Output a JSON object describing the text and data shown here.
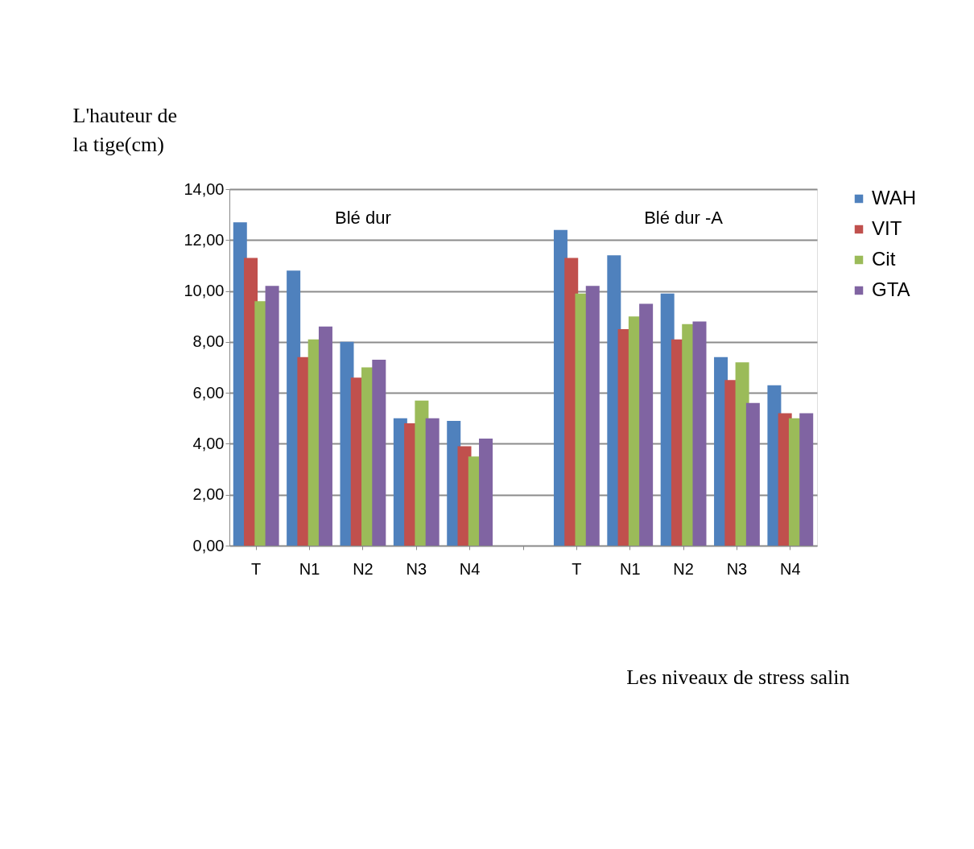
{
  "chart_data": {
    "type": "bar",
    "categories": [
      "T",
      "N1",
      "N2",
      "N3",
      "N4",
      null,
      "T",
      "N1",
      "N2",
      "N3",
      "N4"
    ],
    "series": [
      {
        "name": "WAH",
        "color": "#4f81bd",
        "values": [
          12.7,
          10.8,
          8.0,
          5.0,
          4.9,
          null,
          12.4,
          11.4,
          9.9,
          7.4,
          6.3
        ]
      },
      {
        "name": "VIT",
        "color": "#c0504d",
        "values": [
          11.3,
          7.4,
          6.6,
          4.8,
          3.9,
          null,
          11.3,
          8.5,
          8.1,
          6.5,
          5.2
        ]
      },
      {
        "name": "Cit",
        "color": "#9bbb59",
        "values": [
          9.6,
          8.1,
          7.0,
          5.7,
          3.5,
          null,
          9.9,
          9.0,
          8.7,
          7.2,
          5.0
        ]
      },
      {
        "name": "GTA",
        "color": "#8064a2",
        "values": [
          10.2,
          8.6,
          7.3,
          5.0,
          4.2,
          null,
          10.2,
          9.5,
          8.8,
          5.6,
          5.2
        ]
      }
    ],
    "ylabel": "L'hauteur de la tige(cm)",
    "xlabel": "Les niveaux de stress salin",
    "annotations": [
      "Blé  dur",
      "Blé dur -A"
    ],
    "ylim": [
      0,
      14
    ],
    "yticks": [
      {
        "value": 0,
        "label": "0,00"
      },
      {
        "value": 2,
        "label": "2,00"
      },
      {
        "value": 4,
        "label": "4,00"
      },
      {
        "value": 6,
        "label": "6,00"
      },
      {
        "value": 8,
        "label": "8,00"
      },
      {
        "value": 10,
        "label": "10,00"
      },
      {
        "value": 12,
        "label": "12,00"
      },
      {
        "value": 14,
        "label": "14,00"
      }
    ],
    "grid": "y",
    "legend": "right"
  }
}
